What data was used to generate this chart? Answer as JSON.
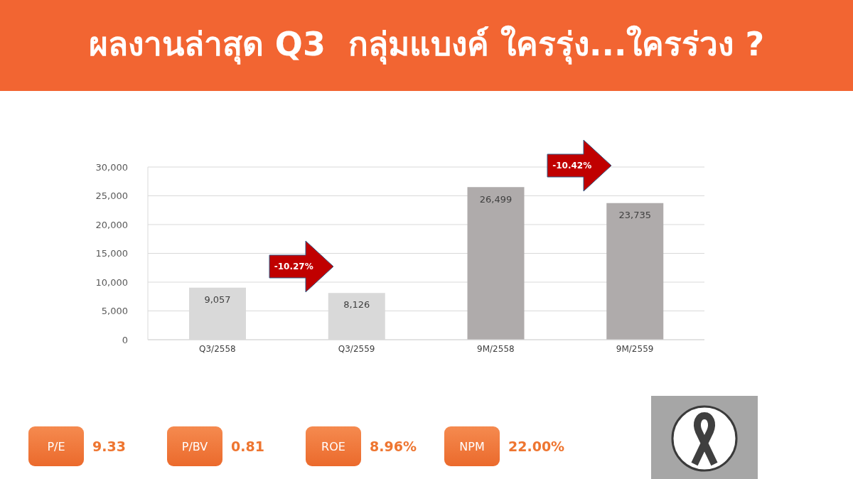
{
  "chart_data": [
    {
      "type": "bar",
      "title": "ผลงานล่าสุด Q3  กลุ่มแบงค์ ใครรุ่ง...ใครร่วง ?",
      "categories": [
        "Q3/2558",
        "Q3/2559",
        "9M/2558",
        "9M/2559"
      ],
      "values": [
        9057,
        8126,
        26499,
        23735
      ],
      "value_labels": [
        "9,057",
        "8,126",
        "26,499",
        "23,735"
      ],
      "colors": [
        "#d9d9d9",
        "#d9d9d9",
        "#afabab",
        "#afabab"
      ],
      "ylim": [
        0,
        30000
      ],
      "yticks": [
        {
          "value": 0,
          "label": "0"
        },
        {
          "value": 5000,
          "label": "5,000"
        },
        {
          "value": 10000,
          "label": "10,000"
        },
        {
          "value": 15000,
          "label": "15,000"
        },
        {
          "value": 20000,
          "label": "20,000"
        },
        {
          "value": 25000,
          "label": "25,000"
        },
        {
          "value": 30000,
          "label": "30,000"
        }
      ],
      "grid": "y",
      "annotations": [
        "-10.27%",
        "-10.42%"
      ]
    },
    {
      "type": "other",
      "annotations": [
        "P/E",
        "9.33",
        "P/BV",
        "0.81",
        "ROE",
        "8.96%",
        "NPM",
        "22.00%"
      ]
    }
  ]
}
